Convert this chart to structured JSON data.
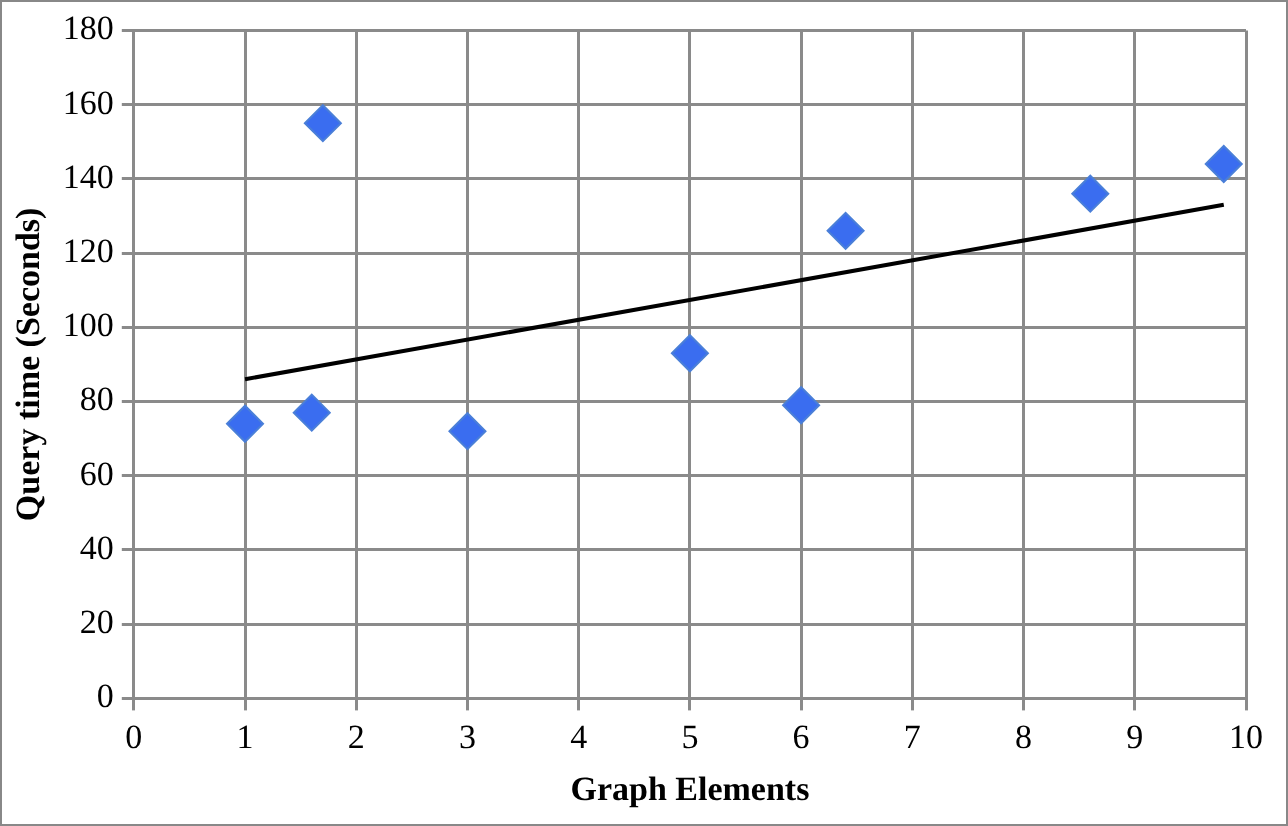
{
  "chart_data": {
    "type": "scatter",
    "xlabel": "Graph Elements",
    "ylabel": "Query time (Seconds)",
    "xlim": [
      0,
      10
    ],
    "xticks": [
      0,
      1,
      2,
      3,
      4,
      5,
      6,
      7,
      8,
      9,
      10
    ],
    "ylim": [
      0,
      180
    ],
    "yticks": [
      0,
      20,
      40,
      60,
      80,
      100,
      120,
      140,
      160,
      180
    ],
    "grid": true,
    "legend": false,
    "marker": "diamond",
    "series": [
      {
        "color": "#3a6df0",
        "x": [
          1,
          1.6,
          1.7,
          3,
          5,
          6,
          6.4,
          8.6,
          9.8
        ],
        "values": [
          74,
          77,
          155,
          72,
          93,
          79,
          126,
          136,
          144
        ]
      },
      {
        "type": "line",
        "color": "#000000",
        "marker": "none",
        "x": [
          1,
          9.8
        ],
        "values": [
          86,
          133
        ]
      }
    ]
  }
}
